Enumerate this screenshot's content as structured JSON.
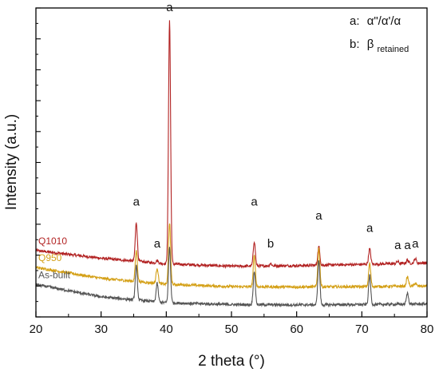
{
  "chart_data": {
    "type": "line",
    "title": "",
    "xlabel": "2 theta (°)",
    "ylabel": "Intensity (a.u.)",
    "xlim": [
      20,
      80
    ],
    "ylim": [
      0,
      100
    ],
    "xticks": [
      20,
      30,
      40,
      50,
      60,
      70,
      80
    ],
    "y_tick_labels": false,
    "grid": false,
    "legend": {
      "placement": "top-right",
      "entries": [
        {
          "key": "a:",
          "text": "α\"/α'/α"
        },
        {
          "key": "b:",
          "text": "β",
          "subscript": "retained"
        }
      ]
    },
    "series": [
      {
        "name": "Q1010",
        "color": "#b22222",
        "baseline": [
          [
            20,
            21.5
          ],
          [
            30,
            19.0
          ],
          [
            40,
            17.2
          ],
          [
            50,
            16.4
          ],
          [
            60,
            16.6
          ],
          [
            70,
            17.0
          ],
          [
            80,
            17.5
          ]
        ],
        "peaks": [
          [
            35.4,
            12.5
          ],
          [
            38.6,
            0.8
          ],
          [
            40.5,
            79.0
          ],
          [
            53.5,
            8.0
          ],
          [
            56.0,
            0.8
          ],
          [
            63.4,
            6.0
          ],
          [
            71.2,
            5.0
          ],
          [
            75.5,
            0.7
          ],
          [
            77.0,
            1.0
          ],
          [
            78.2,
            1.5
          ]
        ]
      },
      {
        "name": "Q950",
        "color": "#d4a017",
        "baseline": [
          [
            20,
            16.0
          ],
          [
            30,
            12.5
          ],
          [
            40,
            10.6
          ],
          [
            50,
            9.8
          ],
          [
            60,
            9.7
          ],
          [
            70,
            9.8
          ],
          [
            80,
            10.0
          ]
        ],
        "peaks": [
          [
            35.4,
            10.0
          ],
          [
            38.6,
            5.0
          ],
          [
            40.5,
            20.0
          ],
          [
            53.5,
            10.0
          ],
          [
            63.4,
            12.5
          ],
          [
            71.2,
            7.5
          ],
          [
            77.0,
            3.0
          ],
          [
            78.2,
            1.0
          ]
        ]
      },
      {
        "name": "As-built",
        "color": "#555555",
        "baseline": [
          [
            20,
            10.5
          ],
          [
            30,
            6.5
          ],
          [
            40,
            4.6
          ],
          [
            50,
            4.0
          ],
          [
            60,
            3.9
          ],
          [
            70,
            4.0
          ],
          [
            80,
            4.2
          ]
        ],
        "peaks": [
          [
            35.4,
            11.0
          ],
          [
            38.6,
            6.0
          ],
          [
            40.5,
            18.0
          ],
          [
            53.5,
            11.0
          ],
          [
            63.4,
            14.5
          ],
          [
            71.2,
            9.5
          ],
          [
            77.0,
            3.5
          ]
        ]
      }
    ],
    "peak_annotations": [
      {
        "x": 35.4,
        "y": 36.0,
        "text": "a"
      },
      {
        "x": 38.6,
        "y": 22.5,
        "text": "a"
      },
      {
        "x": 40.5,
        "y": 99.0,
        "text": "a"
      },
      {
        "x": 53.5,
        "y": 36.0,
        "text": "a"
      },
      {
        "x": 56.0,
        "y": 22.5,
        "text": "b"
      },
      {
        "x": 63.4,
        "y": 31.5,
        "text": "a"
      },
      {
        "x": 71.2,
        "y": 27.5,
        "text": "a"
      },
      {
        "x": 75.5,
        "y": 22.0,
        "text": "a"
      },
      {
        "x": 77.0,
        "y": 22.0,
        "text": "a"
      },
      {
        "x": 78.2,
        "y": 22.5,
        "text": "a"
      }
    ]
  }
}
